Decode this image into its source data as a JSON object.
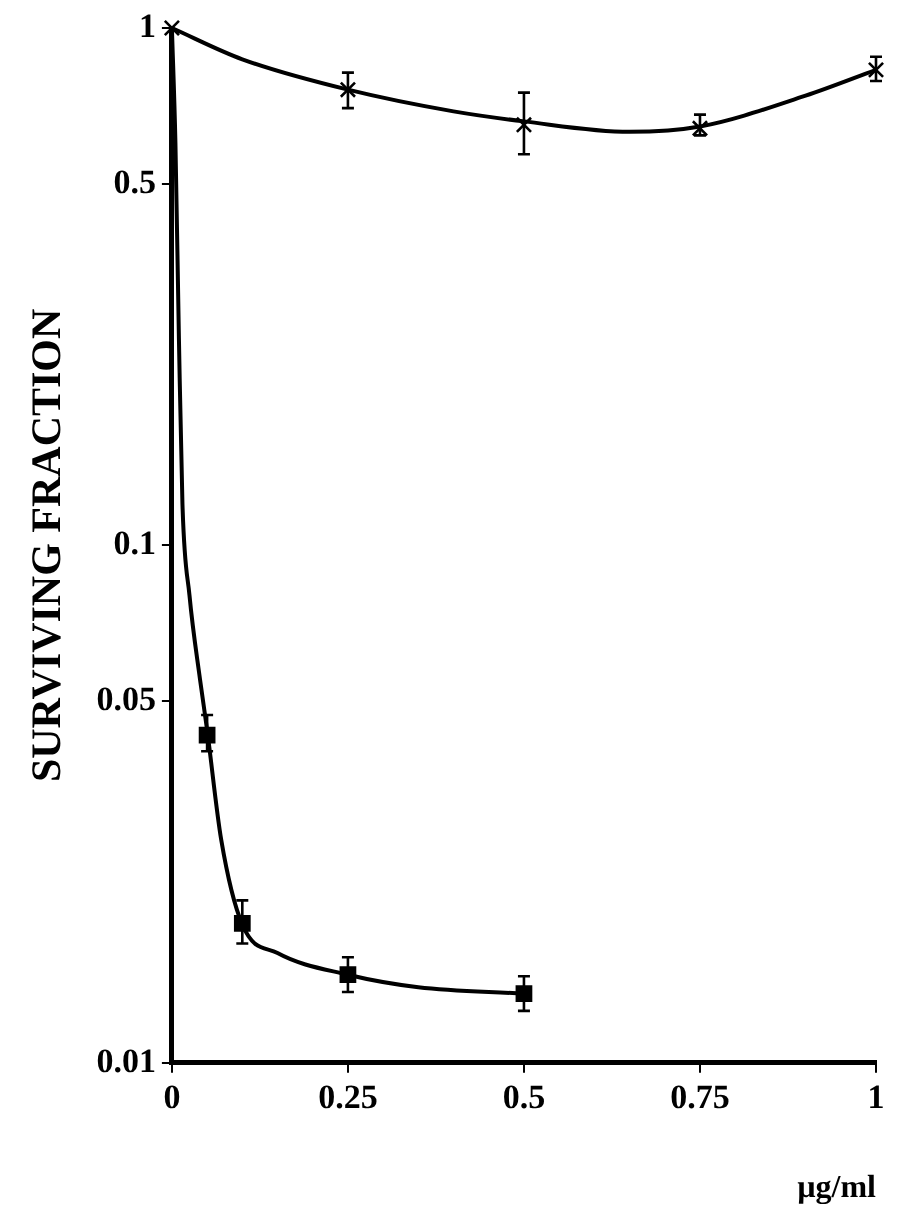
{
  "chart_data": {
    "type": "scatter",
    "ylabel": "SURVIVING FRACTION",
    "xlabel": "µg/ml",
    "log": "y",
    "grid": false,
    "legend": false,
    "xlim": [
      0,
      1
    ],
    "xticks": [
      0,
      0.25,
      0.5,
      0.75,
      1
    ],
    "ylim": [
      0.01,
      1
    ],
    "yticks": [
      0.01,
      0.05,
      0.1,
      0.5,
      1
    ],
    "series": [
      {
        "color": "#000000",
        "marker": "cross",
        "x": [
          0,
          0.25,
          0.5,
          0.75,
          1
        ],
        "values": [
          1,
          0.76,
          0.65,
          0.64,
          0.83
        ],
        "errors": [
          null,
          [
            0.7,
            0.82
          ],
          [
            0.57,
            0.75
          ],
          [
            0.62,
            0.68
          ],
          [
            0.79,
            0.88
          ]
        ]
      },
      {
        "color": "#000000",
        "marker": "square",
        "x": [
          0.05,
          0.1,
          0.25,
          0.5
        ],
        "values": [
          0.043,
          0.0186,
          0.0148,
          0.0136
        ],
        "errors": [
          [
            0.04,
            0.047
          ],
          [
            0.017,
            0.0206
          ],
          [
            0.0137,
            0.016
          ],
          [
            0.0126,
            0.0147
          ]
        ]
      },
      {
        "type": "line",
        "color": "#000000",
        "marker": "none",
        "x": [
          0,
          0.1,
          0.25,
          0.4,
          0.5,
          0.65,
          0.75,
          0.9,
          1
        ],
        "values": [
          1,
          0.87,
          0.76,
          0.69,
          0.66,
          0.63,
          0.645,
          0.74,
          0.83
        ]
      },
      {
        "type": "line",
        "color": "#000000",
        "marker": "none",
        "x": [
          0,
          0.005,
          0.01,
          0.015,
          0.025,
          0.04,
          0.05,
          0.07,
          0.1,
          0.15,
          0.25,
          0.35,
          0.5
        ],
        "values": [
          1,
          0.6,
          0.25,
          0.12,
          0.08,
          0.055,
          0.044,
          0.027,
          0.0185,
          0.0163,
          0.0148,
          0.014,
          0.0136
        ]
      }
    ]
  }
}
